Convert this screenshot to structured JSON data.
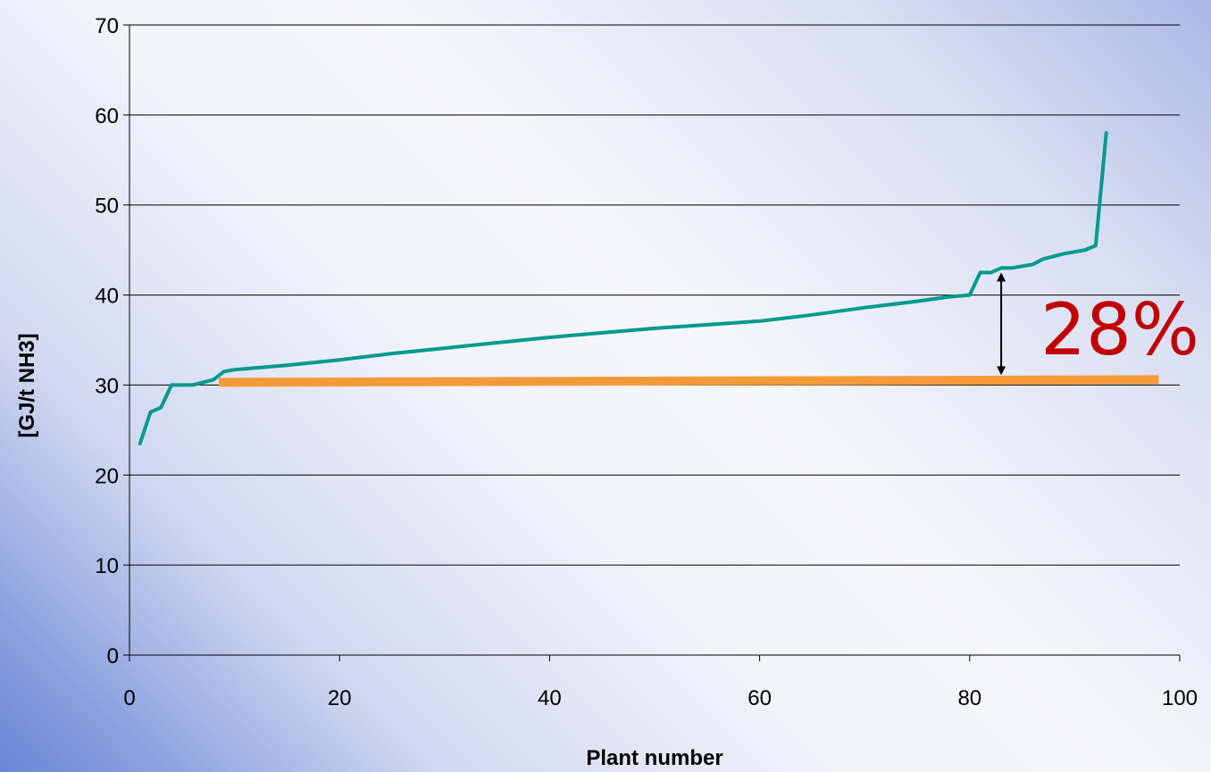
{
  "chart_data": {
    "type": "line",
    "xlabel": "Plant number",
    "ylabel": "[GJ/t NH3]",
    "xlim": [
      0,
      100
    ],
    "ylim": [
      0,
      70
    ],
    "x_ticks": [
      "0",
      "20",
      "40",
      "60",
      "80",
      "100"
    ],
    "y_ticks": [
      "0",
      "10",
      "20",
      "30",
      "40",
      "50",
      "60",
      "70"
    ],
    "grid": "horizontal",
    "series": [
      {
        "color": "#00998f",
        "x": [
          1,
          2,
          3,
          4,
          5,
          6,
          7,
          8,
          9,
          10,
          12,
          15,
          20,
          25,
          30,
          35,
          40,
          45,
          50,
          55,
          60,
          65,
          70,
          75,
          78,
          80,
          81,
          82,
          83,
          84,
          85,
          86,
          87,
          88,
          89,
          90,
          91,
          92,
          93
        ],
        "values": [
          23.5,
          27,
          27.5,
          30,
          30,
          30,
          30.3,
          30.6,
          31.5,
          31.7,
          31.9,
          32.2,
          32.8,
          33.5,
          34.1,
          34.7,
          35.3,
          35.8,
          36.3,
          36.7,
          37.1,
          37.8,
          38.6,
          39.3,
          39.8,
          40,
          42.5,
          42.5,
          43,
          43,
          43.2,
          43.4,
          44,
          44.3,
          44.6,
          44.8,
          45,
          45.5,
          58
        ]
      },
      {
        "color": "#f59a38",
        "x": [
          8.5,
          98
        ],
        "values": [
          30.3,
          30.6
        ]
      }
    ],
    "annotations": [
      {
        "type": "double-arrow",
        "x": 83,
        "y_from": 30.6,
        "y_to": 43
      },
      {
        "type": "text",
        "text": "28%",
        "color": "#c00000"
      }
    ]
  }
}
